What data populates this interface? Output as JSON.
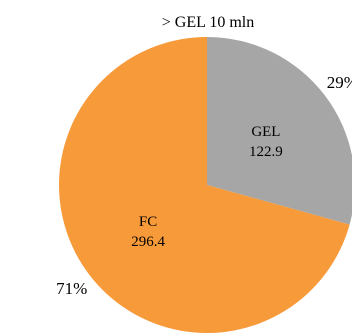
{
  "chart_data": {
    "type": "pie",
    "title": "> GEL 10 mln",
    "categories": [
      "GEL",
      "FC"
    ],
    "values": [
      122.9,
      296.4
    ],
    "percent_labels": [
      "29%",
      "71%"
    ],
    "colors": [
      "#A6A6A6",
      "#F79A3A"
    ],
    "legend": "none"
  }
}
